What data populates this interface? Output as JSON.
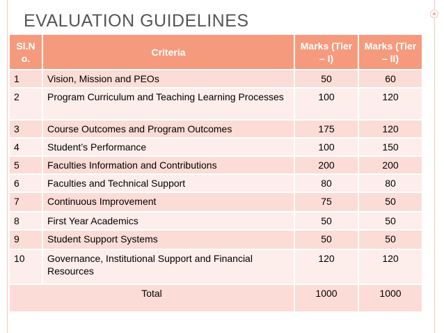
{
  "slide": {
    "title": "EVALUATION GUIDELINES"
  },
  "table": {
    "headers": {
      "sno": "Sl.N o.",
      "criteria": "Criteria",
      "tier1": "Marks (Tier – I)",
      "tier2": "Marks (Tier – II)"
    },
    "rows": [
      {
        "sno": "1",
        "criteria": "Vision, Mission and PEOs",
        "tier1": "50",
        "tier2": "60"
      },
      {
        "sno": "2",
        "criteria": "Program Curriculum and Teaching Learning Processes",
        "tier1": "100",
        "tier2": "120"
      },
      {
        "sno": "3",
        "criteria": "Course Outcomes and Program Outcomes",
        "tier1": "175",
        "tier2": "120"
      },
      {
        "sno": "4",
        "criteria": "Student’s Performance",
        "tier1": "100",
        "tier2": "150"
      },
      {
        "sno": "5",
        "criteria": "Faculties Information and Contributions",
        "tier1": "200",
        "tier2": "200"
      },
      {
        "sno": "6",
        "criteria": "Faculties and Technical Support",
        "tier1": "80",
        "tier2": "80"
      },
      {
        "sno": "7",
        "criteria": "Continuous Improvement",
        "tier1": "75",
        "tier2": "50"
      },
      {
        "sno": "8",
        "criteria": "First Year Academics",
        "tier1": "50",
        "tier2": "50"
      },
      {
        "sno": "9",
        "criteria": "Student Support Systems",
        "tier1": "50",
        "tier2": "50"
      },
      {
        "sno": "10",
        "criteria": "Governance, Institutional Support and Financial Resources",
        "tier1": "120",
        "tier2": "120"
      }
    ],
    "total": {
      "label": "Total",
      "tier1": "1000",
      "tier2": "1000"
    }
  },
  "colors": {
    "header": "#f59a7c",
    "row_dark": "#fcdcd6",
    "row_light": "#fdeeeb",
    "title": "#555555"
  }
}
